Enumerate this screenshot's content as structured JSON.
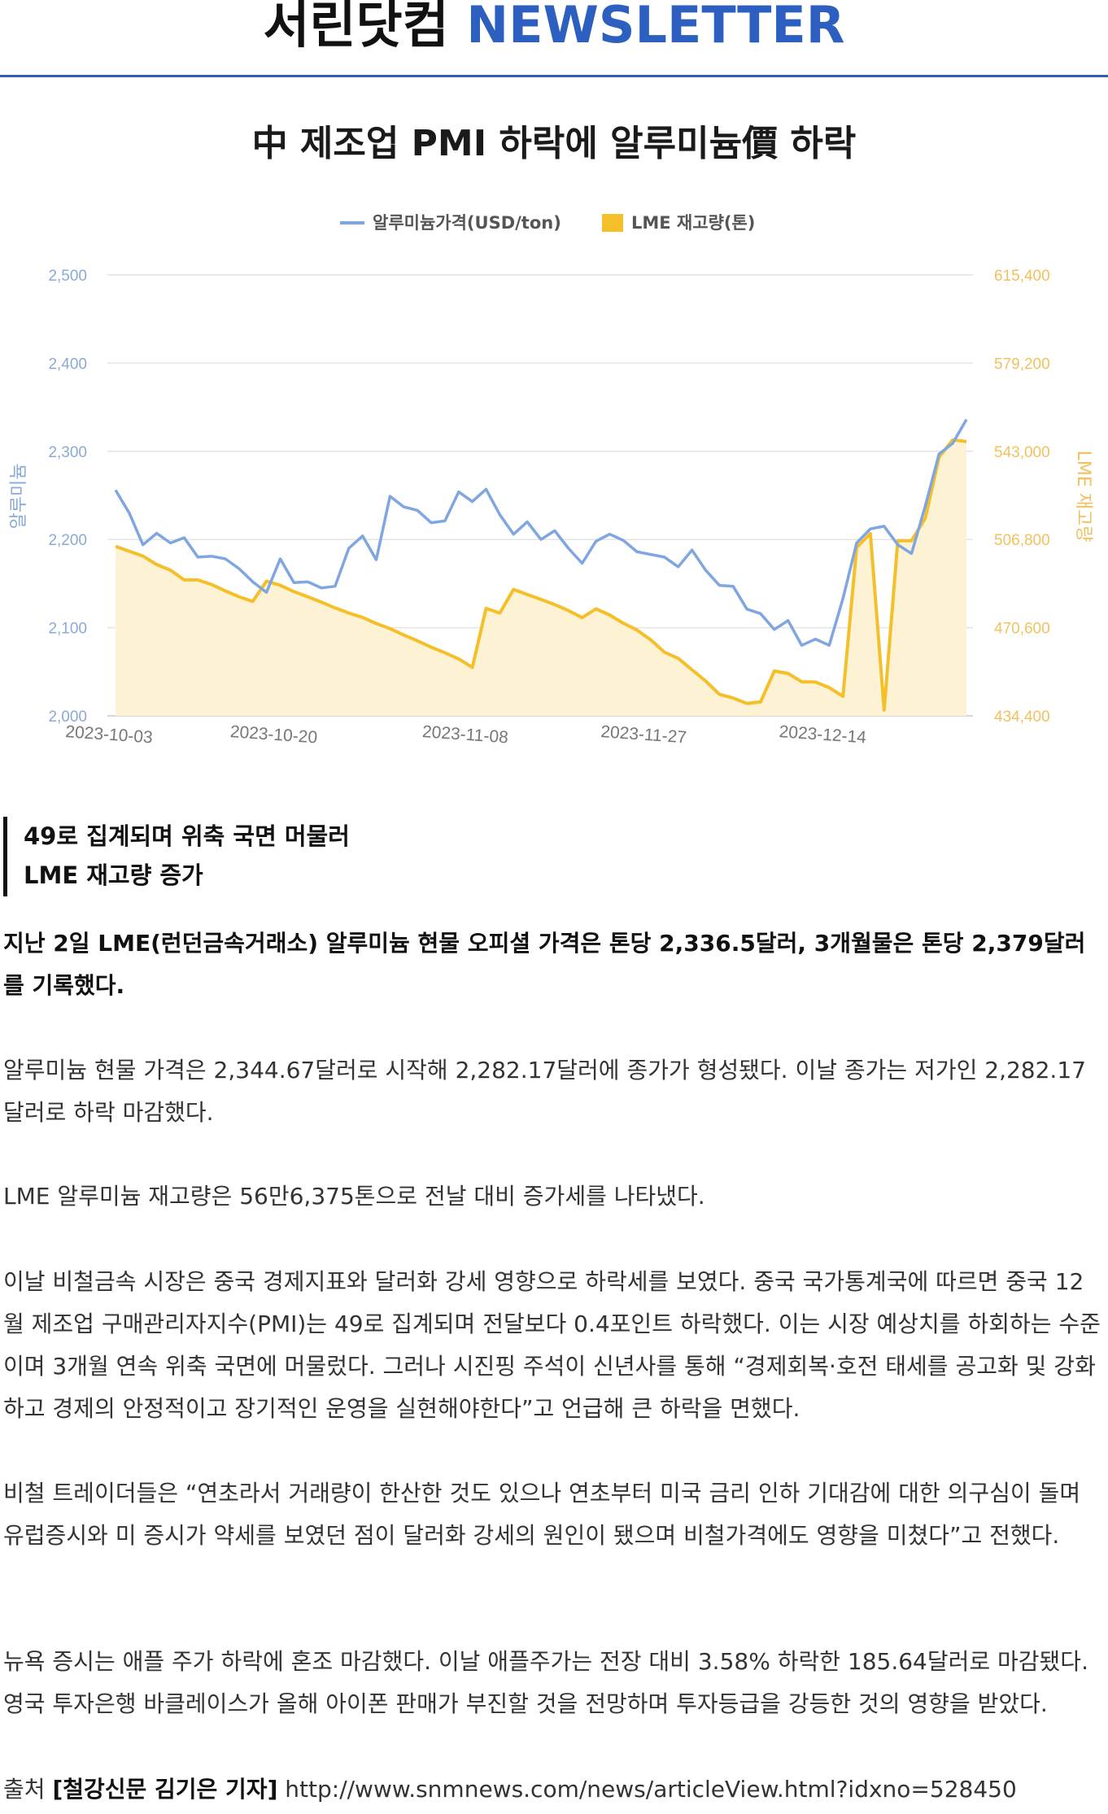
{
  "masthead": {
    "brand": "서린닷컴",
    "news": "NEWSLETTER"
  },
  "article_title": "中 제조업 PMI 하락에 알루미늄價 하락",
  "colors": {
    "price_line": "#7fa6e0",
    "stock_line": "#f5bf2a",
    "stock_fill": "#fdf3d4",
    "accent": "#2d5fc0"
  },
  "chart_data": {
    "type": "line",
    "legend": [
      "알루미늄가격(USD/ton)",
      "LME 재고량(톤)"
    ],
    "legend_placement": "top-center",
    "ylabel": "알루미늄",
    "y2label": "LME 재고량",
    "ylim": [
      2000,
      2500
    ],
    "y_ticks": [
      "2,000",
      "2,100",
      "2,200",
      "2,300",
      "2,400",
      "2,500"
    ],
    "y2lim": [
      434400,
      615400
    ],
    "y2_ticks": [
      "434,400",
      "470,600",
      "506,800",
      "543,000",
      "579,200",
      "615,400"
    ],
    "x_ticks": [
      "2023-10-03",
      "2023-10-20",
      "2023-11-08",
      "2023-11-27",
      "2023-12-14"
    ],
    "x_tick_index": [
      0,
      12,
      26,
      39,
      52
    ],
    "grid": true,
    "series": [
      {
        "name": "알루미늄가격(USD/ton)",
        "values": [
          2256,
          2230,
          2194,
          2207,
          2196,
          2202,
          2180,
          2181,
          2178,
          2167,
          2152,
          2140,
          2178,
          2151,
          2152,
          2145,
          2147,
          2190,
          2204,
          2177,
          2249,
          2237,
          2233,
          2219,
          2221,
          2254,
          2243,
          2257,
          2228,
          2206,
          2220,
          2200,
          2210,
          2190,
          2173,
          2198,
          2206,
          2199,
          2186,
          2183,
          2180,
          2169,
          2188,
          2165,
          2148,
          2147,
          2121,
          2116,
          2098,
          2108,
          2080,
          2087,
          2080,
          2133,
          2196,
          2212,
          2215,
          2194,
          2184,
          2238,
          2297,
          2309,
          2336
        ]
      },
      {
        "name": "LME 재고량(톤)",
        "values": [
          504000,
          502000,
          500000,
          496500,
          494200,
          490200,
          490200,
          488300,
          485700,
          483300,
          481400,
          489700,
          488000,
          485400,
          483300,
          481100,
          478700,
          476600,
          474800,
          472300,
          470200,
          467600,
          465200,
          462600,
          460300,
          457800,
          454300,
          478500,
          476600,
          486300,
          484200,
          482200,
          480100,
          477600,
          474700,
          478300,
          475800,
          472400,
          469600,
          465600,
          460500,
          458000,
          453300,
          448700,
          443200,
          441700,
          439500,
          440100,
          452800,
          451800,
          448400,
          448300,
          446000,
          442400,
          503500,
          509200,
          436800,
          506300,
          506300,
          515500,
          540600,
          547700,
          547000
        ]
      }
    ]
  },
  "subhead": [
    "49로 집계되며 위축 국면 머물러",
    "LME 재고량 증가"
  ],
  "lead": "지난 2일 LME(런던금속거래소) 알루미늄 현물 오피셜 가격은 톤당 2,336.5달러, 3개월물은 톤당 2,379달러를 기록했다.",
  "paragraphs": [
    "알루미늄 현물 가격은 2,344.67달러로 시작해 2,282.17달러에 종가가 형성됐다. 이날 종가는 저가인 2,282.17달러로 하락 마감했다.",
    "LME 알루미늄 재고량은 56만6,375톤으로 전날 대비 증가세를 나타냈다.",
    "이날 비철금속 시장은 중국 경제지표와 달러화 강세 영향으로 하락세를 보였다. 중국 국가통계국에 따르면 중국 12월 제조업 구매관리자지수(PMI)는 49로 집계되며 전달보다 0.4포인트 하락했다. 이는 시장 예상치를 하회하는 수준이며 3개월 연속 위축 국면에 머물렀다. 그러나 시진핑 주석이 신년사를 통해 “경제회복·호전 태세를 공고화 및 강화하고 경제의 안정적이고 장기적인 운영을 실현해야한다”고 언급해 큰 하락을 면했다.",
    "비철 트레이더들은 “연초라서 거래량이 한산한 것도 있으나 연초부터 미국 금리 인하 기대감에 대한 의구심이 돌며 유럽증시와 미 증시가 약세를 보였던 점이 달러화 강세의 원인이 됐으며 비철가격에도 영향을 미쳤다”고 전했다.",
    "뉴욕 증시는 애플 주가 하락에 혼조 마감했다. 이날 애플주가는 전장 대비 3.58% 하락한 185.64달러로 마감됐다. 영국 투자은행 바클레이스가 올해 아이폰 판매가 부진할 것을 전망하며 투자등급을 강등한 것의 영향을 받았다."
  ],
  "source": {
    "label": "출처",
    "reporter": "[철강신문 김기은 기자]",
    "url": "http://www.snmnews.com/news/articleView.html?idxno=528450"
  }
}
